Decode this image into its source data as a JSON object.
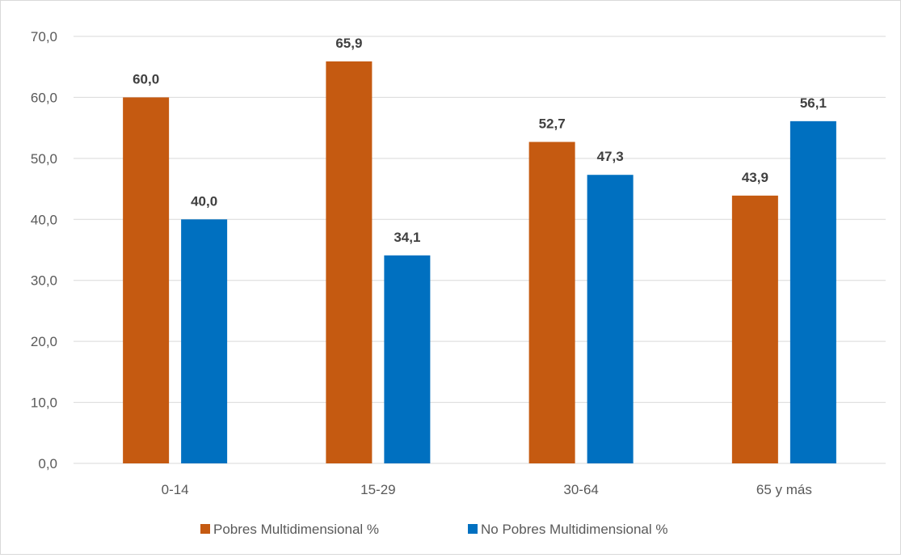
{
  "chart_data": {
    "type": "bar",
    "title": "",
    "xlabel": "",
    "ylabel": "",
    "categories": [
      "0-14",
      "15-29",
      "30-64",
      "65 y más"
    ],
    "series": [
      {
        "name": "Pobres Multidimensional %",
        "values": [
          60.0,
          65.9,
          52.7,
          43.9
        ],
        "color": "#c55a11"
      },
      {
        "name": "No Pobres Multidimensional %",
        "values": [
          40.0,
          34.1,
          47.3,
          56.1
        ],
        "color": "#0070c0"
      }
    ],
    "ylim": [
      0,
      70
    ],
    "yticks": [
      "0,0",
      "10,0",
      "20,0",
      "30,0",
      "40,0",
      "50,0",
      "60,0",
      "70,0"
    ],
    "data_labels": [
      [
        "60,0",
        "65,9",
        "52,7",
        "43,9"
      ],
      [
        "40,0",
        "34,1",
        "47,3",
        "56,1"
      ]
    ],
    "grid": true,
    "legend_position": "bottom",
    "colors": {
      "grid": "#d9d9d9",
      "axis": "#d9d9d9",
      "border": "#d9d9d9"
    }
  }
}
